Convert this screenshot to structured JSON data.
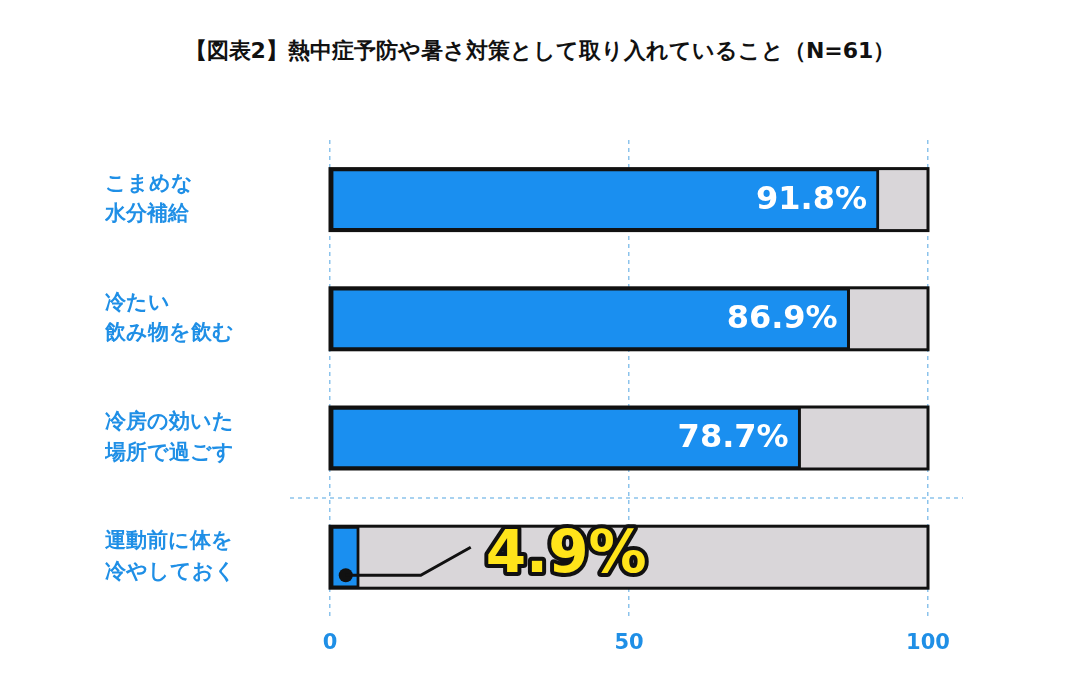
{
  "chart_data": {
    "type": "bar",
    "orientation": "horizontal",
    "title": "【図表2】熱中症予防や暑さ対策として取り入れていること（N=61）",
    "categories": [
      "こまめな\n水分補給",
      "冷たい\n飲み物を飲む",
      "冷房の効いた\n場所で過ごす",
      "運動前に体を\n冷やしておく"
    ],
    "values": [
      91.8,
      86.9,
      78.7,
      4.9
    ],
    "value_labels": [
      "91.8%",
      "86.9%",
      "78.7%",
      "4.9%"
    ],
    "color": "#1a8ff0",
    "xlim": [
      0,
      100
    ],
    "xticks": [
      0,
      50,
      100
    ],
    "grid": true,
    "data_labels": true
  }
}
